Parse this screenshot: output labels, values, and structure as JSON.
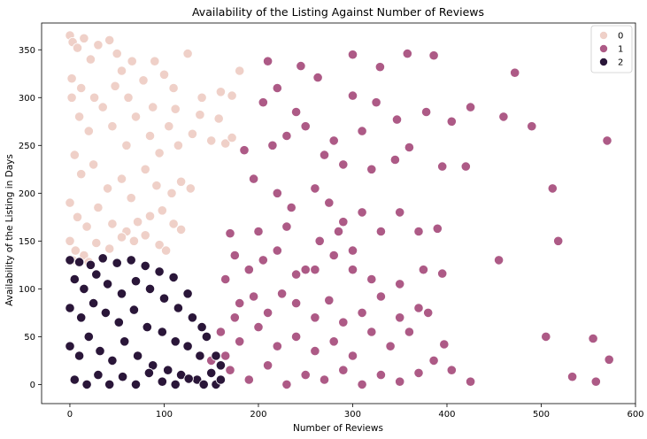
{
  "chart_data": {
    "type": "scatter",
    "title": "Availability of the Listing Against Number of Reviews",
    "xlabel": "Number of Reviews",
    "ylabel": "Availability of the Listing in Days",
    "xlim": [
      -30,
      600
    ],
    "ylim": [
      -20,
      378
    ],
    "xticks": [
      0,
      100,
      200,
      300,
      400,
      500,
      600
    ],
    "yticks": [
      0,
      50,
      100,
      150,
      200,
      250,
      300,
      350
    ],
    "grid": false,
    "legend": {
      "position": "top-right",
      "entries": [
        "0",
        "1",
        "2"
      ]
    },
    "colors": {
      "0": "#efd0c8",
      "1": "#ad5a86",
      "2": "#2a1639"
    },
    "series": [
      {
        "name": "0",
        "points": [
          [
            0,
            365
          ],
          [
            3,
            358
          ],
          [
            8,
            352
          ],
          [
            15,
            362
          ],
          [
            22,
            340
          ],
          [
            30,
            355
          ],
          [
            42,
            360
          ],
          [
            50,
            346
          ],
          [
            55,
            328
          ],
          [
            66,
            338
          ],
          [
            78,
            318
          ],
          [
            90,
            338
          ],
          [
            100,
            324
          ],
          [
            110,
            310
          ],
          [
            125,
            346
          ],
          [
            140,
            300
          ],
          [
            160,
            306
          ],
          [
            172,
            302
          ],
          [
            180,
            328
          ],
          [
            2,
            300
          ],
          [
            10,
            280
          ],
          [
            20,
            265
          ],
          [
            35,
            290
          ],
          [
            45,
            270
          ],
          [
            60,
            250
          ],
          [
            70,
            280
          ],
          [
            85,
            260
          ],
          [
            95,
            242
          ],
          [
            105,
            270
          ],
          [
            115,
            250
          ],
          [
            130,
            262
          ],
          [
            150,
            255
          ],
          [
            165,
            252
          ],
          [
            172,
            258
          ],
          [
            5,
            240
          ],
          [
            12,
            220
          ],
          [
            25,
            230
          ],
          [
            40,
            205
          ],
          [
            55,
            215
          ],
          [
            65,
            195
          ],
          [
            80,
            225
          ],
          [
            92,
            208
          ],
          [
            108,
            200
          ],
          [
            118,
            212
          ],
          [
            128,
            205
          ],
          [
            0,
            190
          ],
          [
            8,
            175
          ],
          [
            18,
            165
          ],
          [
            30,
            185
          ],
          [
            45,
            168
          ],
          [
            60,
            160
          ],
          [
            72,
            170
          ],
          [
            85,
            176
          ],
          [
            98,
            182
          ],
          [
            110,
            168
          ],
          [
            0,
            150
          ],
          [
            6,
            140
          ],
          [
            15,
            135
          ],
          [
            28,
            148
          ],
          [
            42,
            142
          ],
          [
            55,
            154
          ],
          [
            68,
            150
          ],
          [
            80,
            156
          ],
          [
            95,
            146
          ],
          [
            102,
            140
          ],
          [
            118,
            162
          ],
          [
            2,
            320
          ],
          [
            12,
            310
          ],
          [
            26,
            300
          ],
          [
            48,
            312
          ],
          [
            62,
            300
          ],
          [
            88,
            290
          ],
          [
            112,
            288
          ],
          [
            138,
            282
          ],
          [
            158,
            278
          ],
          [
            3,
            130
          ],
          [
            20,
            128
          ]
        ]
      },
      {
        "name": "1",
        "points": [
          [
            300,
            345
          ],
          [
            358,
            346
          ],
          [
            386,
            344
          ],
          [
            210,
            338
          ],
          [
            245,
            333
          ],
          [
            329,
            332
          ],
          [
            472,
            326
          ],
          [
            263,
            321
          ],
          [
            220,
            310
          ],
          [
            300,
            302
          ],
          [
            240,
            285
          ],
          [
            325,
            295
          ],
          [
            347,
            277
          ],
          [
            378,
            285
          ],
          [
            425,
            290
          ],
          [
            460,
            280
          ],
          [
            490,
            270
          ],
          [
            570,
            255
          ],
          [
            405,
            275
          ],
          [
            310,
            265
          ],
          [
            280,
            255
          ],
          [
            205,
            295
          ],
          [
            215,
            250
          ],
          [
            230,
            260
          ],
          [
            250,
            270
          ],
          [
            270,
            240
          ],
          [
            290,
            230
          ],
          [
            320,
            225
          ],
          [
            345,
            235
          ],
          [
            360,
            248
          ],
          [
            395,
            228
          ],
          [
            420,
            228
          ],
          [
            185,
            245
          ],
          [
            195,
            215
          ],
          [
            220,
            200
          ],
          [
            235,
            185
          ],
          [
            260,
            205
          ],
          [
            275,
            190
          ],
          [
            290,
            170
          ],
          [
            310,
            180
          ],
          [
            330,
            160
          ],
          [
            350,
            180
          ],
          [
            370,
            160
          ],
          [
            390,
            163
          ],
          [
            300,
            140
          ],
          [
            512,
            205
          ],
          [
            518,
            150
          ],
          [
            455,
            130
          ],
          [
            175,
            135
          ],
          [
            190,
            120
          ],
          [
            205,
            130
          ],
          [
            220,
            140
          ],
          [
            240,
            115
          ],
          [
            260,
            120
          ],
          [
            280,
            135
          ],
          [
            300,
            120
          ],
          [
            320,
            110
          ],
          [
            350,
            105
          ],
          [
            375,
            120
          ],
          [
            395,
            116
          ],
          [
            180,
            85
          ],
          [
            195,
            92
          ],
          [
            210,
            75
          ],
          [
            225,
            95
          ],
          [
            240,
            85
          ],
          [
            260,
            70
          ],
          [
            275,
            88
          ],
          [
            290,
            65
          ],
          [
            310,
            75
          ],
          [
            330,
            92
          ],
          [
            350,
            70
          ],
          [
            370,
            80
          ],
          [
            160,
            55
          ],
          [
            180,
            45
          ],
          [
            200,
            60
          ],
          [
            220,
            40
          ],
          [
            240,
            50
          ],
          [
            260,
            35
          ],
          [
            280,
            45
          ],
          [
            300,
            30
          ],
          [
            320,
            55
          ],
          [
            340,
            40
          ],
          [
            360,
            55
          ],
          [
            380,
            75
          ],
          [
            397,
            42
          ],
          [
            505,
            50
          ],
          [
            555,
            48
          ],
          [
            572,
            26
          ],
          [
            533,
            8
          ],
          [
            558,
            3
          ],
          [
            150,
            25
          ],
          [
            170,
            15
          ],
          [
            190,
            5
          ],
          [
            210,
            20
          ],
          [
            230,
            0
          ],
          [
            250,
            10
          ],
          [
            270,
            5
          ],
          [
            290,
            15
          ],
          [
            310,
            0
          ],
          [
            330,
            10
          ],
          [
            350,
            3
          ],
          [
            370,
            12
          ],
          [
            386,
            25
          ],
          [
            405,
            15
          ],
          [
            425,
            3
          ],
          [
            250,
            120
          ],
          [
            265,
            150
          ],
          [
            285,
            160
          ],
          [
            230,
            165
          ],
          [
            200,
            160
          ],
          [
            170,
            158
          ],
          [
            165,
            110
          ],
          [
            175,
            70
          ],
          [
            165,
            30
          ]
        ]
      },
      {
        "name": "2",
        "points": [
          [
            0,
            130
          ],
          [
            10,
            128
          ],
          [
            22,
            125
          ],
          [
            35,
            132
          ],
          [
            50,
            127
          ],
          [
            65,
            130
          ],
          [
            80,
            124
          ],
          [
            95,
            118
          ],
          [
            110,
            112
          ],
          [
            125,
            95
          ],
          [
            140,
            60
          ],
          [
            155,
            30
          ],
          [
            160,
            20
          ],
          [
            5,
            110
          ],
          [
            15,
            100
          ],
          [
            28,
            115
          ],
          [
            40,
            105
          ],
          [
            55,
            95
          ],
          [
            70,
            108
          ],
          [
            85,
            100
          ],
          [
            100,
            90
          ],
          [
            115,
            80
          ],
          [
            130,
            70
          ],
          [
            145,
            50
          ],
          [
            0,
            80
          ],
          [
            12,
            70
          ],
          [
            25,
            85
          ],
          [
            38,
            75
          ],
          [
            52,
            65
          ],
          [
            68,
            78
          ],
          [
            82,
            60
          ],
          [
            98,
            55
          ],
          [
            112,
            45
          ],
          [
            125,
            40
          ],
          [
            138,
            30
          ],
          [
            150,
            12
          ],
          [
            0,
            40
          ],
          [
            10,
            30
          ],
          [
            20,
            50
          ],
          [
            32,
            35
          ],
          [
            45,
            25
          ],
          [
            58,
            45
          ],
          [
            72,
            30
          ],
          [
            88,
            20
          ],
          [
            104,
            15
          ],
          [
            118,
            10
          ],
          [
            135,
            5
          ],
          [
            155,
            0
          ],
          [
            5,
            5
          ],
          [
            18,
            0
          ],
          [
            30,
            10
          ],
          [
            42,
            0
          ],
          [
            56,
            8
          ],
          [
            70,
            0
          ],
          [
            84,
            12
          ],
          [
            98,
            3
          ],
          [
            112,
            0
          ],
          [
            126,
            6
          ],
          [
            142,
            0
          ],
          [
            160,
            5
          ]
        ]
      }
    ]
  }
}
